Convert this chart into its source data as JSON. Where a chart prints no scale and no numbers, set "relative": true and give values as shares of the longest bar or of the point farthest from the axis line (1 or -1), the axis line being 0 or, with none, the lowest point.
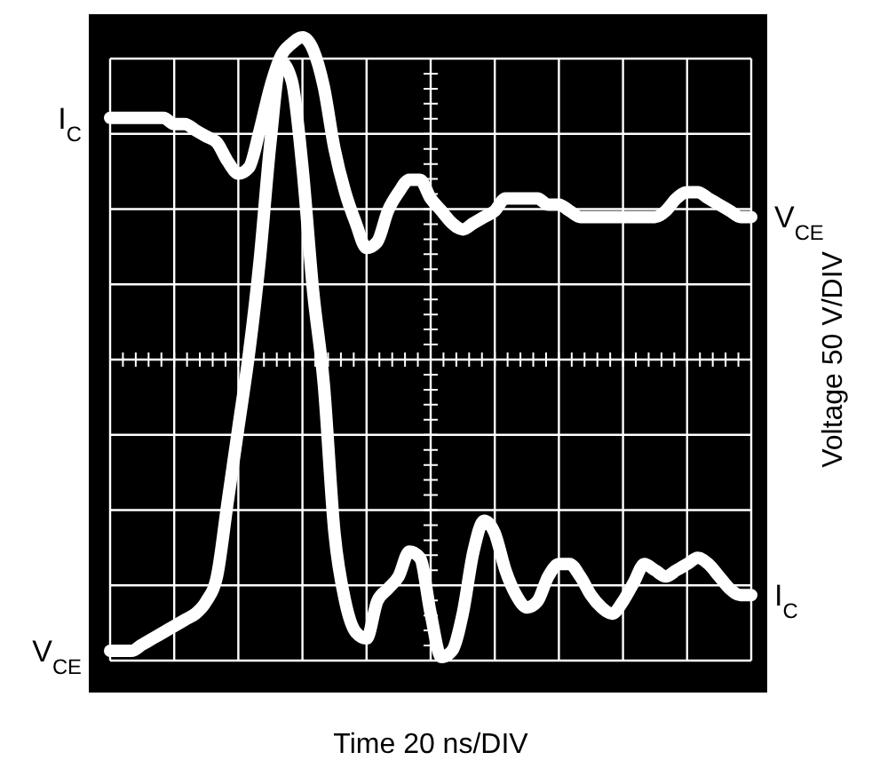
{
  "chart_data": {
    "type": "line",
    "relative": true,
    "grid": true,
    "line_style": "solid",
    "xlabel": "Time 20 ns/DIV",
    "ylabel": "Voltage 50 V/DIV",
    "annotations": [
      "I$_{C}$",
      "V$_{CE}$",
      "V$_{CE}$",
      "I$_{C}$"
    ],
    "categories": [
      null,
      null,
      null,
      null,
      null,
      null,
      null,
      null,
      null,
      null,
      null,
      null,
      null,
      null,
      null,
      null,
      null,
      null,
      null,
      null,
      null,
      null,
      null,
      null,
      null,
      null,
      null,
      null,
      null,
      null,
      null,
      null,
      null,
      null,
      null,
      null,
      null,
      null,
      null,
      null,
      null,
      null,
      null,
      null,
      null,
      null,
      null,
      null,
      null,
      null,
      null,
      null,
      null,
      null,
      null,
      null,
      null,
      null,
      null,
      null,
      null
    ],
    "series": [
      {
        "color": "#ffffff",
        "values": [
          0.87,
          0.87,
          0.87,
          0.87,
          0.87,
          0.87,
          0.86,
          0.86,
          0.85,
          0.84,
          0.83,
          0.8,
          0.78,
          0.79,
          0.85,
          0.92,
          0.97,
          0.99,
          1.0,
          0.98,
          0.92,
          0.82,
          0.75,
          0.7,
          0.66,
          0.67,
          0.72,
          0.75,
          0.77,
          0.77,
          0.74,
          0.72,
          0.7,
          0.69,
          0.7,
          0.71,
          0.72,
          0.74,
          0.74,
          0.74,
          0.74,
          0.73,
          0.73,
          0.72,
          0.71,
          0.71,
          0.71,
          0.71,
          0.71,
          0.71,
          0.71,
          0.71,
          0.72,
          0.74,
          0.75,
          0.75,
          0.74,
          0.73,
          0.72,
          0.71,
          0.71
        ]
      },
      {
        "color": "#ffffff",
        "values": [
          0.01,
          0.01,
          0.01,
          0.02,
          0.03,
          0.04,
          0.05,
          0.06,
          0.07,
          0.09,
          0.13,
          0.25,
          0.37,
          0.49,
          0.64,
          0.83,
          0.96,
          0.93,
          0.79,
          0.59,
          0.44,
          0.2,
          0.09,
          0.04,
          0.03,
          0.09,
          0.11,
          0.13,
          0.17,
          0.16,
          0.07,
          0,
          0.01,
          0.07,
          0.17,
          0.22,
          0.2,
          0.14,
          0.1,
          0.08,
          0.09,
          0.13,
          0.15,
          0.15,
          0.13,
          0.1,
          0.08,
          0.07,
          0.09,
          0.12,
          0.15,
          0.14,
          0.13,
          0.14,
          0.15,
          0.16,
          0.15,
          0.13,
          0.11,
          0.1,
          0.1
        ]
      }
    ]
  }
}
